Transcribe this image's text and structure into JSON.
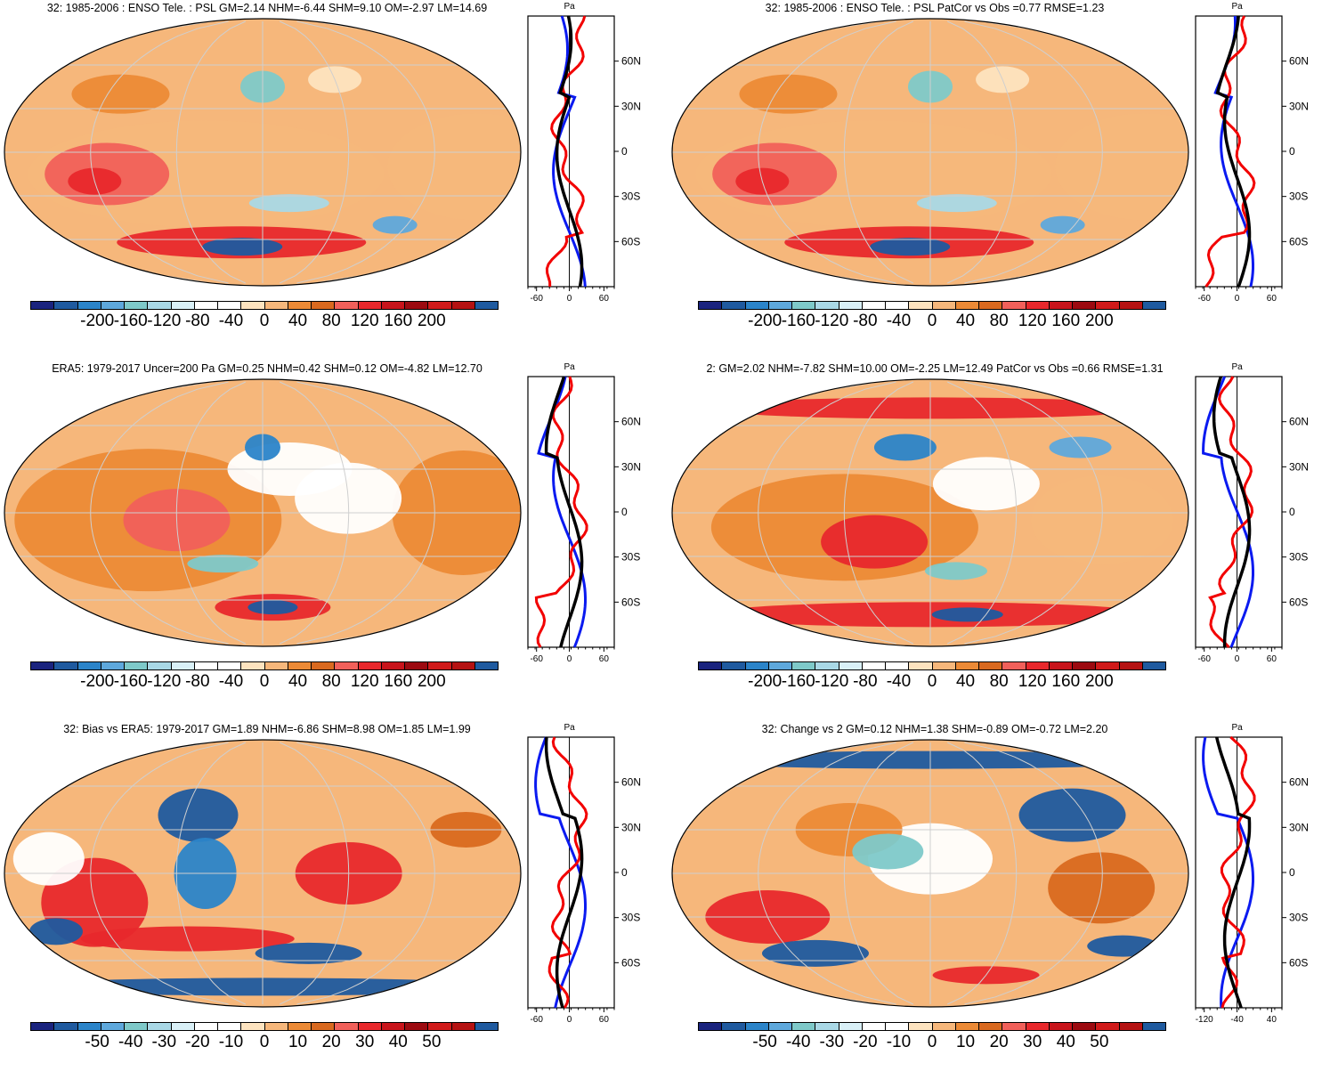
{
  "palette": [
    "#1a237e",
    "#1f5a9f",
    "#2b84c9",
    "#5ea8dc",
    "#7ec9c9",
    "#a9d8e6",
    "#d9f0f7",
    "#ffffff",
    "#ffffff",
    "#fde3bf",
    "#f6b77b",
    "#ec8a36",
    "#d9691f",
    "#f1605a",
    "#e8282c",
    "#c8141b",
    "#9c0a10",
    "#d01a1a",
    "#b51212",
    "#1f5a9f"
  ],
  "colors": {
    "obs": "#f20000",
    "model": "#0a1af0",
    "ens": "#000000",
    "grid": "#cfcfcf"
  },
  "panels": [
    {
      "id": "p1",
      "title": "32: 1985-2006 : ENSO Tele. : PSL GM=2.14 NHM=-6.44 SHM=9.10 OM=-2.97 LM=14.69",
      "colorbar_labels": [
        "-200",
        "-160",
        "-120",
        "-80",
        "-40",
        "0",
        "40",
        "80",
        "120",
        "160",
        "200"
      ],
      "profile_unit": "Pa",
      "lat_ticks": [
        "60N",
        "30N",
        "0",
        "30S",
        "60S"
      ],
      "x_ticks": [
        "-60",
        "0",
        "60"
      ],
      "pattern": "enso"
    },
    {
      "id": "p2",
      "title": "32: 1985-2006 : ENSO Tele. : PSL PatCor vs Obs =0.77 RMSE=1.23",
      "colorbar_labels": [
        "-200",
        "-160",
        "-120",
        "-80",
        "-40",
        "0",
        "40",
        "80",
        "120",
        "160",
        "200"
      ],
      "profile_unit": "Pa",
      "lat_ticks": [
        "60N",
        "30N",
        "0",
        "30S",
        "60S"
      ],
      "x_ticks": [
        "-60",
        "0",
        "60"
      ],
      "pattern": "enso"
    },
    {
      "id": "p3",
      "title": "ERA5: 1979-2017 Uncer=200 Pa GM=0.25 NHM=0.42 SHM=0.12 OM=-4.82 LM=12.70",
      "colorbar_labels": [
        "-200",
        "-160",
        "-120",
        "-80",
        "-40",
        "0",
        "40",
        "80",
        "120",
        "160",
        "200"
      ],
      "profile_unit": "Pa",
      "lat_ticks": [
        "60N",
        "30N",
        "0",
        "30S",
        "60S"
      ],
      "x_ticks": [
        "-60",
        "0",
        "60"
      ],
      "pattern": "era5"
    },
    {
      "id": "p4",
      "title": "2: GM=2.02 NHM=-7.82 SHM=10.00 OM=-2.25 LM=12.49 PatCor vs Obs =0.66 RMSE=1.31",
      "colorbar_labels": [
        "-200",
        "-160",
        "-120",
        "-80",
        "-40",
        "0",
        "40",
        "80",
        "120",
        "160",
        "200"
      ],
      "profile_unit": "Pa",
      "lat_ticks": [
        "60N",
        "30N",
        "0",
        "30S",
        "60S"
      ],
      "x_ticks": [
        "-60",
        "0",
        "60"
      ],
      "pattern": "model2"
    },
    {
      "id": "p5",
      "title": "32: Bias vs ERA5: 1979-2017 GM=1.89 NHM=-6.86 SHM=8.98 OM=1.85 LM=1.99",
      "colorbar_labels": [
        "-50",
        "-40",
        "-30",
        "-20",
        "-10",
        "0",
        "10",
        "20",
        "30",
        "40",
        "50"
      ],
      "profile_unit": "Pa",
      "lat_ticks": [
        "60N",
        "30N",
        "0",
        "30S",
        "60S"
      ],
      "x_ticks": [
        "-60",
        "0",
        "60"
      ],
      "pattern": "bias"
    },
    {
      "id": "p6",
      "title": "32: Change vs 2 GM=0.12 NHM=1.38 SHM=-0.89 OM=-0.72 LM=2.20",
      "colorbar_labels": [
        "-50",
        "-40",
        "-30",
        "-20",
        "-10",
        "0",
        "10",
        "20",
        "30",
        "40",
        "50"
      ],
      "profile_unit": "Pa",
      "lat_ticks": [
        "60N",
        "30N",
        "0",
        "30S",
        "60S"
      ],
      "x_ticks": [
        "-120",
        "-40",
        "40"
      ],
      "pattern": "change"
    }
  ]
}
